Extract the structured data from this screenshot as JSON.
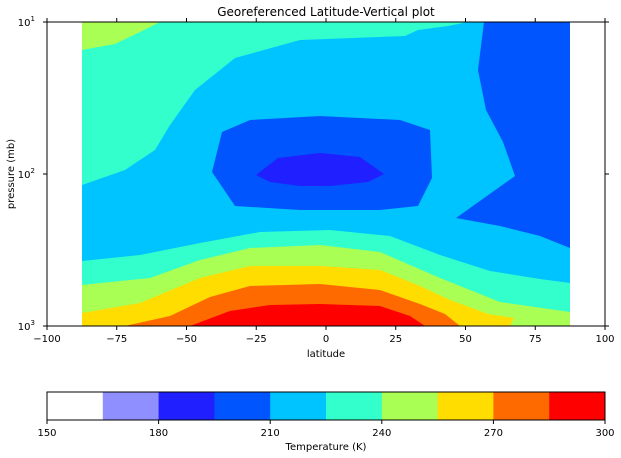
{
  "chart_data": {
    "type": "contourf",
    "title": "Georeferenced Latitude-Vertical plot",
    "xlabel": "latitude",
    "ylabel": "pressure (mb)",
    "xlim": [
      -100,
      100
    ],
    "ylim": [
      1000,
      10
    ],
    "y_scale": "log",
    "x_ticks": [
      "−100",
      "−75",
      "−50",
      "−25",
      "0",
      "25",
      "50",
      "75",
      "100"
    ],
    "x_tick_values": [
      -100,
      -75,
      -50,
      -25,
      0,
      25,
      50,
      75,
      100
    ],
    "y_ticks": [
      {
        "value": 10,
        "base": "10",
        "exp": "1"
      },
      {
        "value": 100,
        "base": "10",
        "exp": "2"
      },
      {
        "value": 1000,
        "base": "10",
        "exp": "3"
      }
    ],
    "data_lat_range": [
      -87.5,
      87.5
    ],
    "levels": [
      150,
      165,
      180,
      195,
      210,
      225,
      240,
      255,
      270,
      285,
      300
    ],
    "level_colors": [
      "#ffffff",
      "#8f8fff",
      "#1f1fff",
      "#0055ff",
      "#00c4ff",
      "#33ffcc",
      "#aaff55",
      "#ffdd00",
      "#ff6a00",
      "#ff0000"
    ],
    "field_samples": [
      {
        "lat": -87.5,
        "pressure": 10,
        "temperature": 244
      },
      {
        "lat": -87.5,
        "pressure": 100,
        "temperature": 218
      },
      {
        "lat": -87.5,
        "pressure": 1000,
        "temperature": 262
      },
      {
        "lat": 0,
        "pressure": 100,
        "temperature": 190
      },
      {
        "lat": 0,
        "pressure": 1000,
        "temperature": 296
      },
      {
        "lat": 80,
        "pressure": 10,
        "temperature": 205
      },
      {
        "lat": 80,
        "pressure": 100,
        "temperature": 210
      }
    ],
    "colorbar": {
      "label": "Temperature (K)",
      "ticks": [
        "150",
        "180",
        "210",
        "240",
        "270",
        "300"
      ],
      "tick_values": [
        150,
        180,
        210,
        240,
        270,
        300
      ]
    }
  }
}
